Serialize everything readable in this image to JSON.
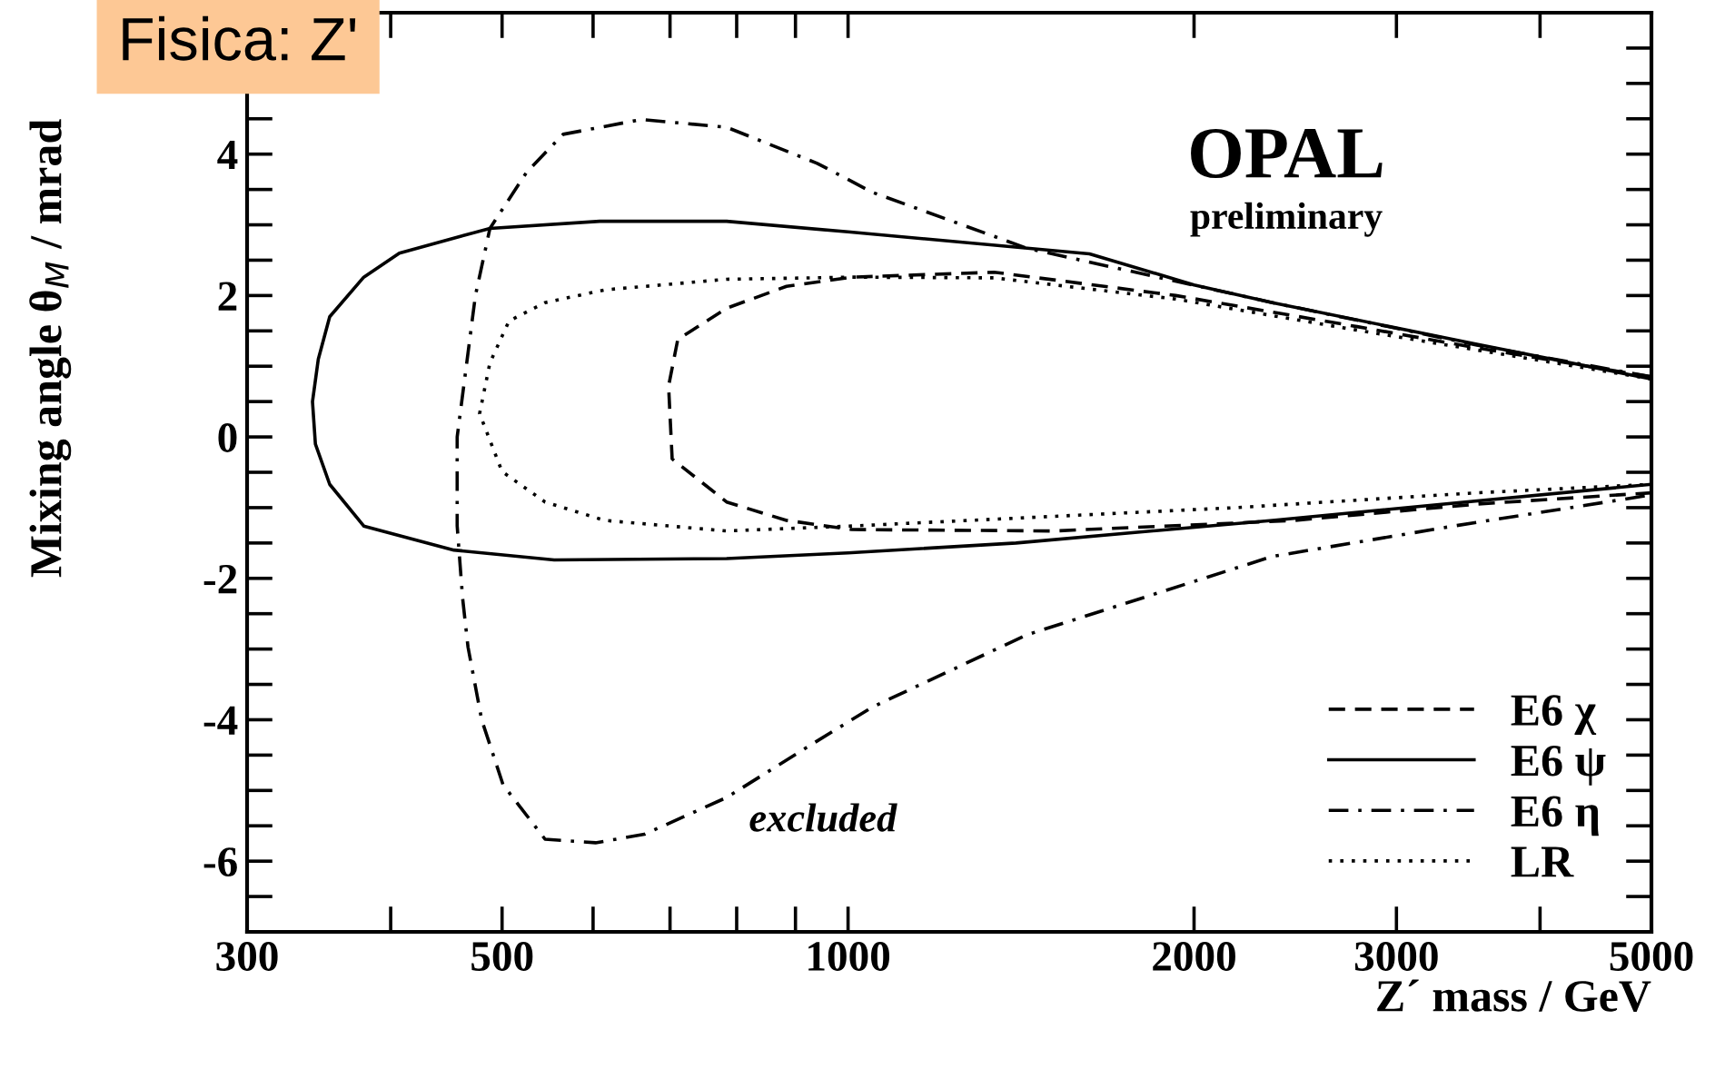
{
  "chart_data": {
    "type": "line",
    "title": "Fisica: Z'",
    "xlabel": "Z´ mass / GeV",
    "ylabel": "Mixing angle θ$_{M}$ / mrad",
    "log": "x",
    "grid": false,
    "legend": "bottom right",
    "marker": "none",
    "xlim": [
      300,
      5000
    ],
    "xticks": [
      300,
      {
        "value": 400,
        "label": null
      },
      500,
      {
        "value": 600,
        "label": null
      },
      {
        "value": 700,
        "label": null
      },
      {
        "value": 800,
        "label": null
      },
      {
        "value": 900,
        "label": null
      },
      1000,
      2000,
      3000,
      {
        "value": 4000,
        "label": null
      },
      5000
    ],
    "ylim": [
      -7,
      6
    ],
    "yticks": [
      {
        "value": -6.5,
        "label": null
      },
      -6,
      {
        "value": -5.5,
        "label": null
      },
      {
        "value": -5,
        "label": null
      },
      {
        "value": -4.5,
        "label": null
      },
      -4,
      {
        "value": -3.5,
        "label": null
      },
      {
        "value": -3,
        "label": null
      },
      {
        "value": -2.5,
        "label": null
      },
      -2,
      {
        "value": -1.5,
        "label": null
      },
      {
        "value": -1,
        "label": null
      },
      {
        "value": -0.5,
        "label": null
      },
      0,
      {
        "value": 0.5,
        "label": null
      },
      {
        "value": 1,
        "label": null
      },
      {
        "value": 1.5,
        "label": null
      },
      2,
      {
        "value": 2.5,
        "label": null
      },
      {
        "value": 3,
        "label": null
      },
      {
        "value": 3.5,
        "label": null
      },
      4,
      {
        "value": 4.5,
        "label": null
      },
      {
        "value": 5,
        "label": null
      },
      {
        "value": 5.5,
        "label": null
      }
    ],
    "annotations": [
      "OPAL",
      "preliminary",
      "excluded"
    ],
    "series": [
      {
        "name": "E6 χ",
        "color": "#000000",
        "line_style": "dashed",
        "x": [
          5000,
          3524,
          2773,
          1928,
          1340,
          1008,
          884,
          784,
          711,
          698,
          703,
          784,
          884,
          1008,
          1510,
          2449,
          3524,
          5000
        ],
        "values": [
          0.85,
          1.26,
          1.56,
          2.0,
          2.33,
          2.26,
          2.13,
          1.82,
          1.38,
          0.72,
          -0.31,
          -0.92,
          -1.18,
          -1.31,
          -1.33,
          -1.18,
          -0.95,
          -0.79
        ]
      },
      {
        "name": "E6 ψ",
        "color": "#000000",
        "line_style": "solid",
        "x": [
          5000,
          3524,
          2340,
          2000,
          1622,
          1000,
          784,
          608,
          488,
          407,
          379,
          354,
          346,
          342,
          344,
          354,
          379,
          454,
          555,
          784,
          1000,
          1400,
          2340,
          5000
        ],
        "values": [
          0.82,
          1.31,
          1.9,
          2.15,
          2.59,
          2.9,
          3.05,
          3.05,
          2.95,
          2.6,
          2.26,
          1.7,
          1.1,
          0.5,
          -0.1,
          -0.67,
          -1.26,
          -1.6,
          -1.74,
          -1.72,
          -1.64,
          -1.5,
          -1.18,
          -0.67
        ]
      },
      {
        "name": "E6 η",
        "color": "#000000",
        "line_style": "dashdot",
        "x": [
          5000,
          3524,
          2340,
          1430,
          1050,
          940,
          784,
          661,
          565,
          525,
          488,
          474,
          457,
          457,
          462,
          467,
          480,
          501,
          545,
          603,
          665,
          784,
          923,
          1050,
          1430,
          2340,
          3365,
          5000
        ],
        "values": [
          0.85,
          1.3,
          1.9,
          2.67,
          3.46,
          3.87,
          4.38,
          4.49,
          4.28,
          3.74,
          2.95,
          2.0,
          0,
          -1.26,
          -2.28,
          -2.97,
          -4.0,
          -4.92,
          -5.69,
          -5.74,
          -5.62,
          -5.1,
          -4.38,
          -3.82,
          -2.8,
          -1.69,
          -1.26,
          -0.82
        ]
      },
      {
        "name": "LR",
        "color": "#000000",
        "line_style": "dotted",
        "x": [
          5000,
          3524,
          2773,
          1928,
          1340,
          1008,
          784,
          614,
          545,
          507,
          488,
          478,
          500,
          545,
          614,
          784,
          1008,
          2173,
          3524,
          5000
        ],
        "values": [
          0.82,
          1.23,
          1.51,
          1.95,
          2.25,
          2.26,
          2.23,
          2.08,
          1.9,
          1.64,
          1.05,
          0.33,
          -0.49,
          -0.92,
          -1.18,
          -1.33,
          -1.26,
          -1.0,
          -0.79,
          -0.67
        ]
      }
    ]
  }
}
